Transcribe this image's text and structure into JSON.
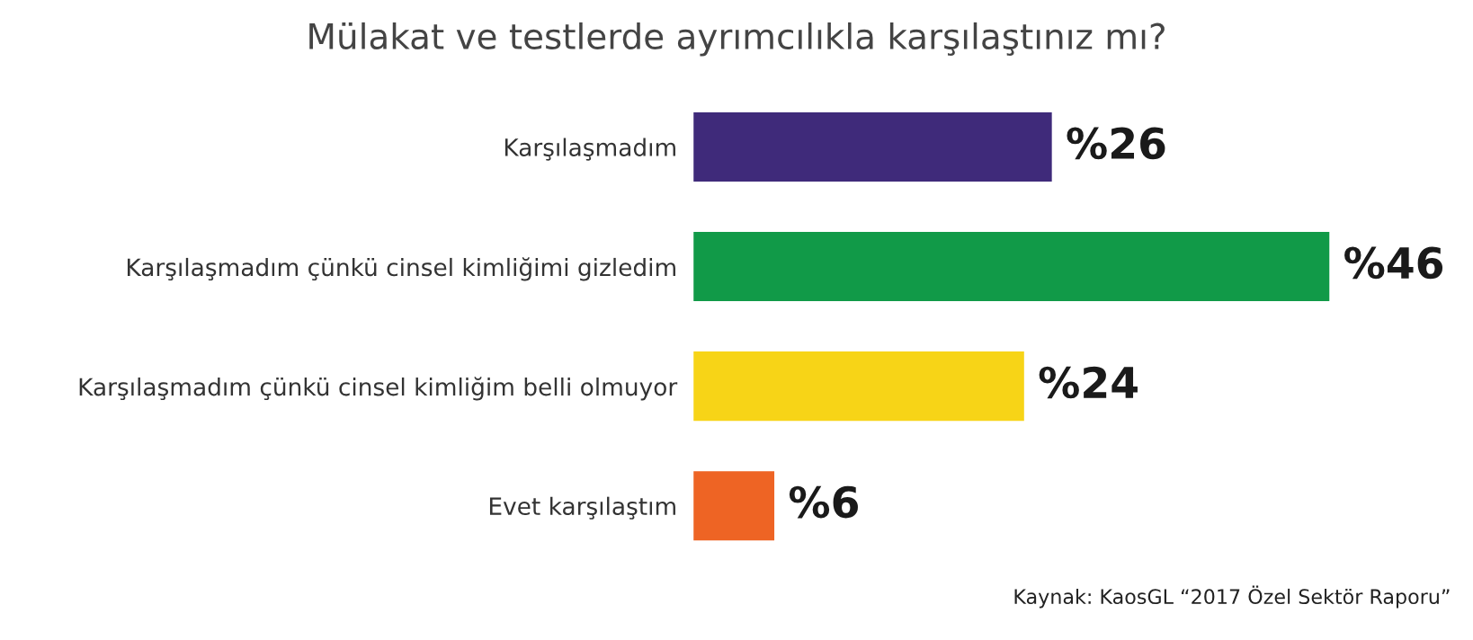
{
  "chart_data": {
    "type": "bar",
    "orientation": "horizontal",
    "title": "Mülakat ve testlerde ayrımcılıkla karşılaştınız mı?",
    "categories": [
      "Karşılaşmadım",
      "Karşılaşmadım çünkü cinsel kimliğimi gizledim",
      "Karşılaşmadım çünkü cinsel kimliğim belli olmuyor",
      "Evet karşılaştım"
    ],
    "values": [
      26,
      46,
      24,
      6
    ],
    "value_labels": [
      "%26",
      "%46",
      "%24",
      "%6"
    ],
    "colors": [
      "#3f2a7a",
      "#119a48",
      "#f7d417",
      "#ee6424"
    ],
    "annotations": [
      "Kaynak: KaosGL “2017 Özel Sektör Raporu”"
    ],
    "grid": false,
    "legend": false
  }
}
